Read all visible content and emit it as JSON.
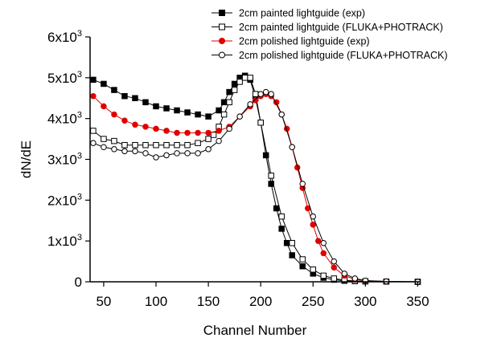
{
  "chart_data": {
    "type": "scatter",
    "xlabel": "Channel Number",
    "ylabel": "dN/dE",
    "xlim": [
      37,
      352
    ],
    "ylim": [
      0,
      6000
    ],
    "xticks": [
      50,
      100,
      150,
      200,
      250,
      300,
      350
    ],
    "yticks": [
      {
        "value": 0,
        "label": "0"
      },
      {
        "value": 1000,
        "label": "1x10",
        "exp": "3"
      },
      {
        "value": 2000,
        "label": "2x10",
        "exp": "3"
      },
      {
        "value": 3000,
        "label": "3x10",
        "exp": "3"
      },
      {
        "value": 4000,
        "label": "4x10",
        "exp": "3"
      },
      {
        "value": 5000,
        "label": "5x10",
        "exp": "3"
      },
      {
        "value": 6000,
        "label": "6x10",
        "exp": "3"
      }
    ],
    "legend_position": "top-right",
    "series": [
      {
        "name": "2cm painted lightguide (exp)",
        "color": "#000000",
        "marker": "square",
        "filled": true,
        "line": true,
        "x": [
          40,
          50,
          60,
          70,
          80,
          90,
          100,
          110,
          120,
          130,
          140,
          150,
          160,
          165,
          170,
          175,
          180,
          185,
          190,
          195,
          200,
          205,
          210,
          215,
          220,
          225,
          230,
          240,
          250,
          260,
          270,
          280,
          290,
          300,
          320,
          350
        ],
        "y": [
          4950,
          4850,
          4700,
          4550,
          4500,
          4400,
          4300,
          4250,
          4200,
          4150,
          4100,
          4050,
          4200,
          4400,
          4650,
          4850,
          5000,
          5050,
          4950,
          4500,
          3900,
          3100,
          2400,
          1800,
          1300,
          950,
          650,
          380,
          200,
          100,
          50,
          25,
          15,
          10,
          5,
          0
        ]
      },
      {
        "name": "2cm painted lightguide (FLUKA+PHOTRACK)",
        "color": "#000000",
        "marker": "square",
        "filled": false,
        "line": true,
        "x": [
          40,
          50,
          60,
          70,
          80,
          90,
          100,
          110,
          120,
          130,
          140,
          150,
          155,
          160,
          165,
          170,
          175,
          180,
          185,
          190,
          195,
          200,
          210,
          220,
          230,
          240,
          250,
          260,
          270,
          280,
          290,
          300,
          320,
          350
        ],
        "y": [
          3700,
          3500,
          3450,
          3350,
          3350,
          3350,
          3350,
          3350,
          3350,
          3350,
          3400,
          3500,
          3600,
          3800,
          4100,
          4400,
          4700,
          4900,
          5000,
          5000,
          4600,
          3900,
          2600,
          1600,
          950,
          550,
          300,
          150,
          80,
          40,
          20,
          10,
          5,
          0
        ]
      },
      {
        "name": "2cm polished lightguide (exp)",
        "color": "#e00000",
        "marker": "circle",
        "filled": true,
        "line": true,
        "x": [
          40,
          50,
          60,
          70,
          80,
          90,
          100,
          110,
          120,
          130,
          140,
          150,
          160,
          170,
          180,
          190,
          195,
          200,
          205,
          210,
          215,
          220,
          225,
          230,
          235,
          240,
          245,
          250,
          255,
          260,
          270,
          280,
          290,
          300,
          320,
          350
        ],
        "y": [
          4550,
          4300,
          4100,
          3950,
          3850,
          3800,
          3750,
          3700,
          3650,
          3650,
          3650,
          3650,
          3700,
          3800,
          4050,
          4300,
          4450,
          4550,
          4600,
          4550,
          4400,
          4100,
          3750,
          3300,
          2800,
          2300,
          1800,
          1400,
          1000,
          700,
          350,
          150,
          60,
          25,
          10,
          0
        ]
      },
      {
        "name": "2cm polished lightguide (FLUKA+PHOTRACK)",
        "color": "#000000",
        "marker": "circle",
        "filled": false,
        "line": true,
        "x": [
          40,
          50,
          60,
          70,
          80,
          90,
          100,
          110,
          120,
          130,
          140,
          150,
          160,
          170,
          180,
          190,
          200,
          205,
          210,
          220,
          230,
          240,
          250,
          260,
          270,
          280,
          290,
          300,
          320,
          350
        ],
        "y": [
          3400,
          3300,
          3250,
          3200,
          3200,
          3150,
          3050,
          3100,
          3150,
          3150,
          3150,
          3250,
          3450,
          3750,
          4050,
          4350,
          4600,
          4650,
          4600,
          4100,
          3300,
          2400,
          1600,
          950,
          500,
          200,
          80,
          30,
          10,
          0
        ]
      }
    ]
  }
}
